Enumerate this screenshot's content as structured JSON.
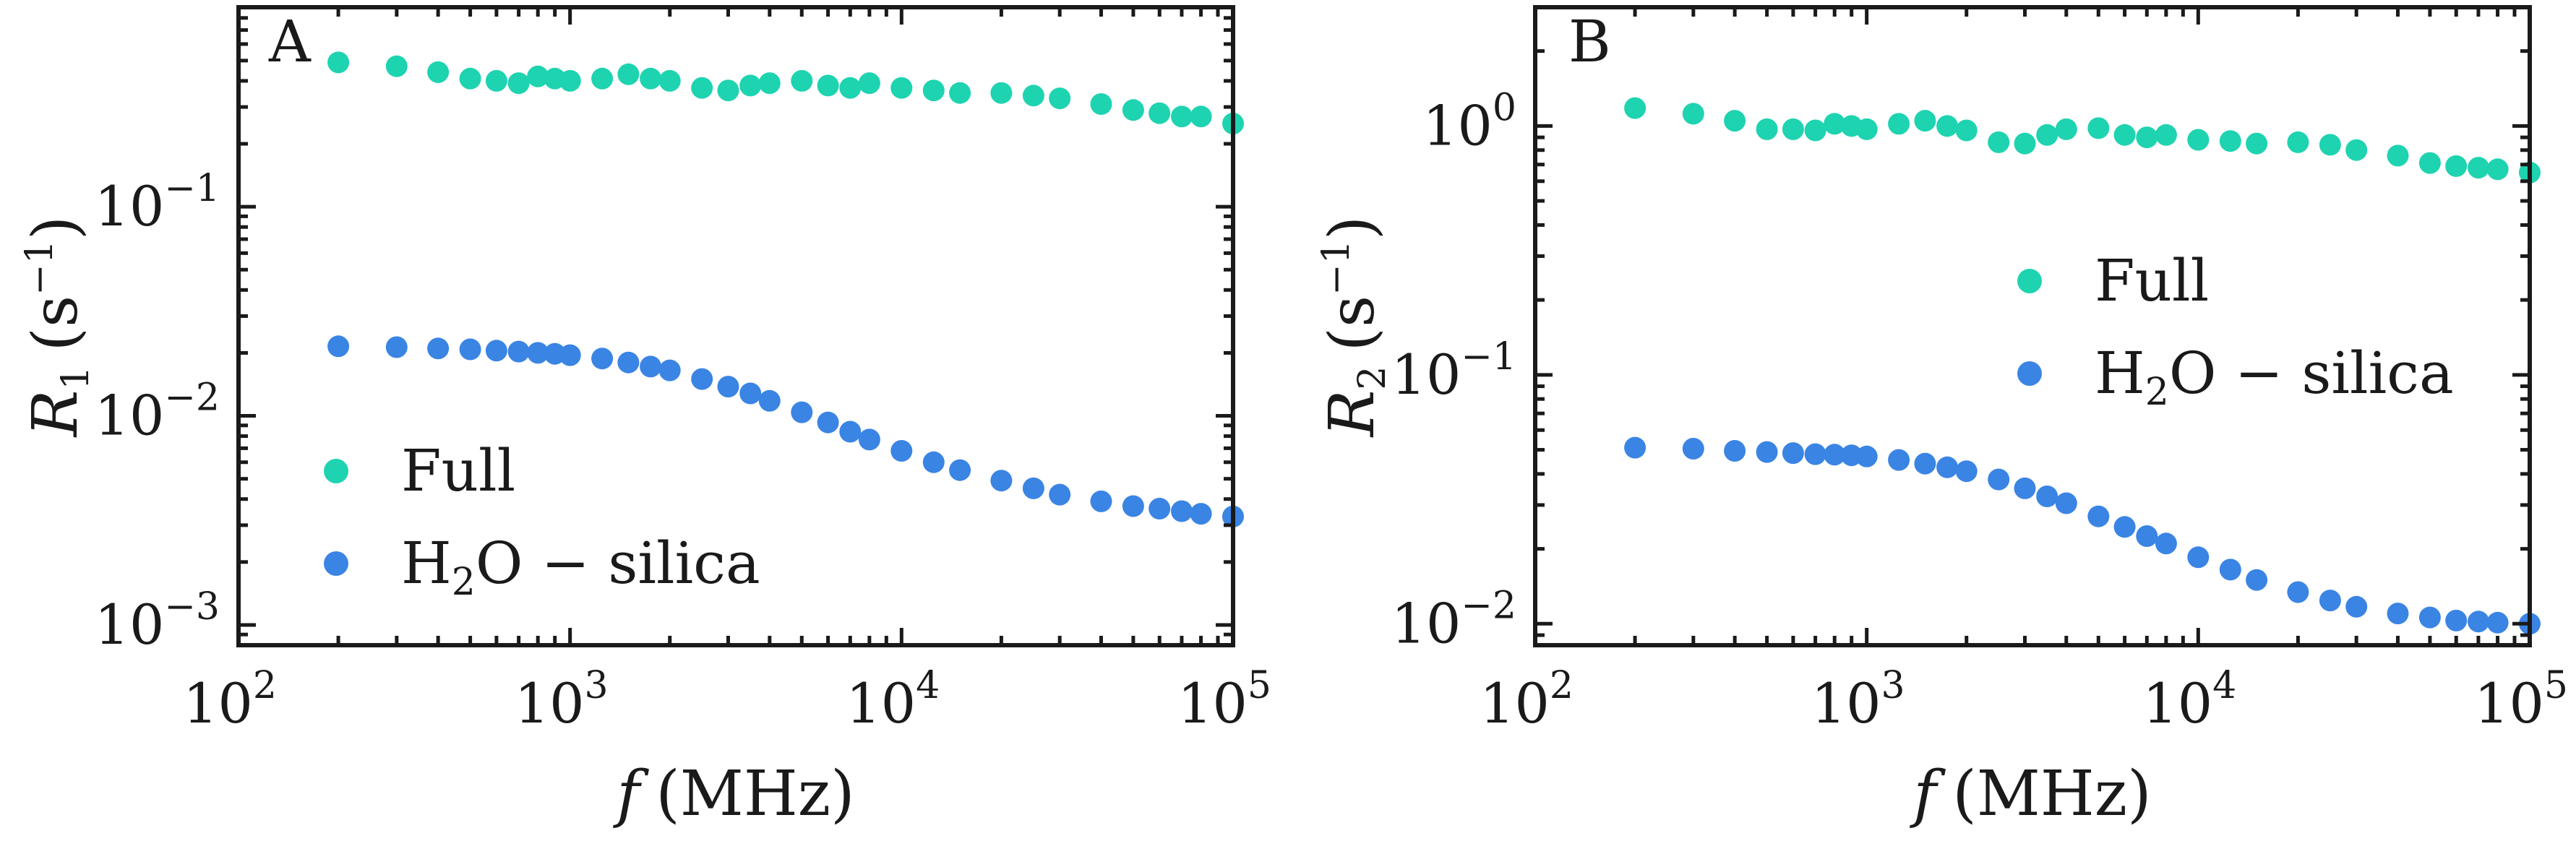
{
  "colors": {
    "full": "#1ed3b0",
    "h2o_silica": "#3a84e4",
    "axis": "#1a1a1a"
  },
  "chart_data": [
    {
      "type": "scatter",
      "panel_letter": "A",
      "xscale": "log",
      "yscale": "log",
      "xlim": [
        100,
        100000
      ],
      "ylim": [
        0.0008,
        0.9
      ],
      "xlabel": {
        "main": "f",
        "unit": "(MHz)"
      },
      "ylabel": {
        "main": "R",
        "sub": "1",
        "unit_open": "(s",
        "unit_sup": "−1",
        "unit_close": ")"
      },
      "x_ticks": [
        {
          "value": 100,
          "base": "10",
          "exp": "2"
        },
        {
          "value": 1000,
          "base": "10",
          "exp": "3"
        },
        {
          "value": 10000,
          "base": "10",
          "exp": "4"
        },
        {
          "value": 100000,
          "base": "10",
          "exp": "5"
        }
      ],
      "y_ticks": [
        {
          "value": 0.001,
          "base": "10",
          "exp": "−3"
        },
        {
          "value": 0.01,
          "base": "10",
          "exp": "−2"
        },
        {
          "value": 0.1,
          "base": "10",
          "exp": "−1"
        }
      ],
      "legend": {
        "position": "lower-left"
      },
      "series": [
        {
          "name": "Full",
          "color": "#1ed3b0",
          "x": [
            200,
            300,
            400,
            500,
            600,
            700,
            800,
            900,
            1000,
            1250,
            1500,
            1750,
            2000,
            2500,
            3000,
            3500,
            4000,
            5000,
            6000,
            7000,
            8000,
            10000,
            12500,
            15000,
            20000,
            25000,
            30000,
            40000,
            50000,
            60000,
            70000,
            80000,
            100000
          ],
          "y": [
            0.49,
            0.47,
            0.44,
            0.41,
            0.4,
            0.39,
            0.42,
            0.41,
            0.4,
            0.41,
            0.43,
            0.41,
            0.4,
            0.37,
            0.36,
            0.38,
            0.39,
            0.4,
            0.38,
            0.37,
            0.39,
            0.37,
            0.36,
            0.35,
            0.35,
            0.34,
            0.33,
            0.31,
            0.29,
            0.28,
            0.27,
            0.27,
            0.25
          ]
        },
        {
          "name": "H₂O − silica",
          "name_parts": {
            "pre": "H",
            "sub": "2",
            "post": "O − silica"
          },
          "color": "#3a84e4",
          "x": [
            200,
            300,
            400,
            500,
            600,
            700,
            800,
            900,
            1000,
            1250,
            1500,
            1750,
            2000,
            2500,
            3000,
            3500,
            4000,
            5000,
            6000,
            7000,
            8000,
            10000,
            12500,
            15000,
            20000,
            25000,
            30000,
            40000,
            50000,
            60000,
            70000,
            80000,
            100000
          ],
          "y": [
            0.0215,
            0.0213,
            0.021,
            0.0208,
            0.0205,
            0.0203,
            0.02,
            0.0198,
            0.0195,
            0.0188,
            0.018,
            0.0172,
            0.0165,
            0.015,
            0.0138,
            0.0128,
            0.0118,
            0.0104,
            0.0093,
            0.0084,
            0.0077,
            0.0068,
            0.006,
            0.0055,
            0.0049,
            0.0045,
            0.0042,
            0.0039,
            0.0037,
            0.0036,
            0.0035,
            0.0034,
            0.0033
          ]
        }
      ]
    },
    {
      "type": "scatter",
      "panel_letter": "B",
      "xscale": "log",
      "yscale": "log",
      "xlim": [
        100,
        100000
      ],
      "ylim": [
        0.0082,
        3.0
      ],
      "xlabel": {
        "main": "f",
        "unit": "(MHz)"
      },
      "ylabel": {
        "main": "R",
        "sub": "2",
        "unit_open": "(s",
        "unit_sup": "−1",
        "unit_close": ")"
      },
      "x_ticks": [
        {
          "value": 100,
          "base": "10",
          "exp": "2"
        },
        {
          "value": 1000,
          "base": "10",
          "exp": "3"
        },
        {
          "value": 10000,
          "base": "10",
          "exp": "4"
        },
        {
          "value": 100000,
          "base": "10",
          "exp": "5"
        }
      ],
      "y_ticks": [
        {
          "value": 0.01,
          "base": "10",
          "exp": "−2"
        },
        {
          "value": 0.1,
          "base": "10",
          "exp": "−1"
        },
        {
          "value": 1,
          "base": "10",
          "exp": "0"
        }
      ],
      "legend": {
        "position": "center-right"
      },
      "series": [
        {
          "name": "Full",
          "color": "#1ed3b0",
          "x": [
            200,
            300,
            400,
            500,
            600,
            700,
            800,
            900,
            1000,
            1250,
            1500,
            1750,
            2000,
            2500,
            3000,
            3500,
            4000,
            5000,
            6000,
            7000,
            8000,
            10000,
            12500,
            15000,
            20000,
            25000,
            30000,
            40000,
            50000,
            60000,
            70000,
            80000,
            100000
          ],
          "y": [
            1.18,
            1.12,
            1.05,
            0.97,
            0.97,
            0.96,
            1.02,
            1.0,
            0.97,
            1.02,
            1.05,
            1.0,
            0.96,
            0.86,
            0.85,
            0.92,
            0.97,
            0.98,
            0.92,
            0.9,
            0.92,
            0.88,
            0.87,
            0.85,
            0.86,
            0.84,
            0.8,
            0.76,
            0.71,
            0.69,
            0.68,
            0.67,
            0.65
          ]
        },
        {
          "name": "H₂O − silica",
          "name_parts": {
            "pre": "H",
            "sub": "2",
            "post": "O − silica"
          },
          "color": "#3a84e4",
          "x": [
            200,
            300,
            400,
            500,
            600,
            700,
            800,
            900,
            1000,
            1250,
            1500,
            1750,
            2000,
            2500,
            3000,
            3500,
            4000,
            5000,
            6000,
            7000,
            8000,
            10000,
            12500,
            15000,
            20000,
            25000,
            30000,
            40000,
            50000,
            60000,
            70000,
            80000,
            100000
          ],
          "y": [
            0.051,
            0.0505,
            0.0495,
            0.049,
            0.0485,
            0.048,
            0.0478,
            0.0475,
            0.047,
            0.0455,
            0.044,
            0.0425,
            0.041,
            0.038,
            0.035,
            0.0325,
            0.0305,
            0.027,
            0.0245,
            0.0225,
            0.021,
            0.0185,
            0.0165,
            0.015,
            0.0134,
            0.0124,
            0.0117,
            0.011,
            0.0106,
            0.0103,
            0.0102,
            0.0101,
            0.01
          ]
        }
      ]
    }
  ]
}
